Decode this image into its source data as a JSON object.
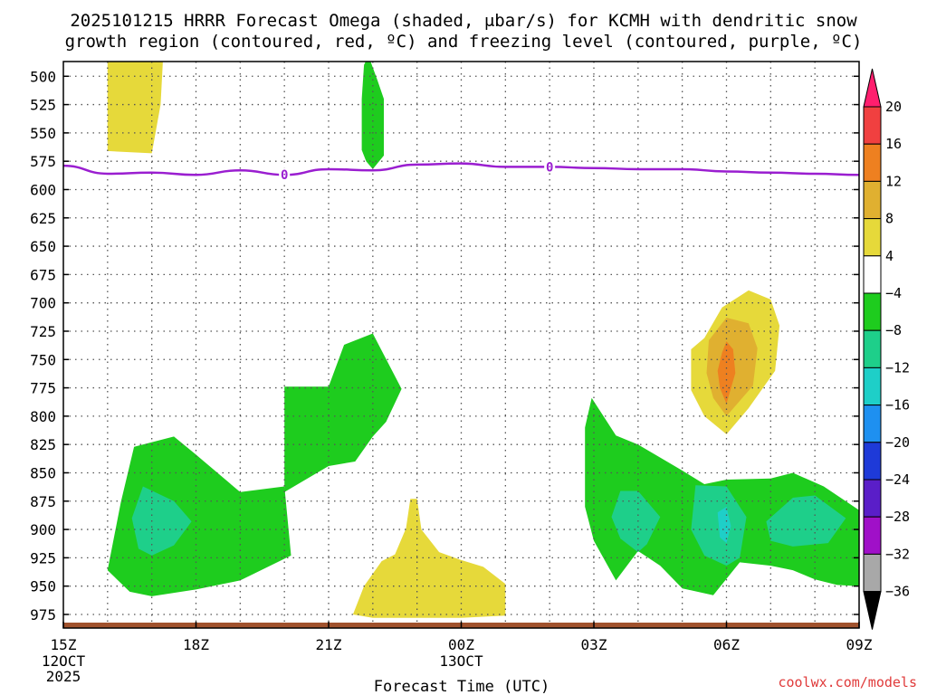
{
  "chart_data": {
    "type": "heatmap",
    "title_line1": "2025101215 HRRR Forecast Omega (shaded, μbar/s) for KCMH with dendritic snow",
    "title_line2": "growth region (contoured, red, ºC) and freezing level (contoured, purple, ºC)",
    "xlabel": "Forecast Time (UTC)",
    "credit": "coolwx.com/models",
    "x_ticks": [
      {
        "hour": 0,
        "label": "15Z"
      },
      {
        "hour": 3,
        "label": "18Z"
      },
      {
        "hour": 6,
        "label": "21Z"
      },
      {
        "hour": 9,
        "label": "00Z"
      },
      {
        "hour": 12,
        "label": "03Z"
      },
      {
        "hour": 15,
        "label": "06Z"
      },
      {
        "hour": 18,
        "label": "09Z"
      }
    ],
    "x_date_labels": [
      {
        "hour": 0,
        "lines": [
          "12OCT",
          "2025"
        ]
      },
      {
        "hour": 9,
        "lines": [
          "13OCT"
        ]
      }
    ],
    "xlim": [
      0,
      18
    ],
    "ylim": [
      987,
      487
    ],
    "y_ticks": [
      500,
      525,
      550,
      575,
      600,
      625,
      650,
      675,
      700,
      725,
      750,
      775,
      800,
      825,
      850,
      875,
      900,
      925,
      950,
      975
    ],
    "colorbar": {
      "labels": [
        "20",
        "16",
        "12",
        "8",
        "4",
        "−4",
        "−8",
        "−12",
        "−16",
        "−20",
        "−24",
        "−28",
        "−32",
        "−36"
      ],
      "colors": [
        "#ff1e6e",
        "#f04040",
        "#ee8020",
        "#e0b030",
        "#e6d93a",
        "#ffffff",
        "#1ecc1e",
        "#1ecf8a",
        "#1ecfc8",
        "#1e90f0",
        "#1e3ad8",
        "#5a1ec8",
        "#a010c8",
        "#a8a8a8",
        "#000000"
      ]
    },
    "freezing_level": {
      "label": "0",
      "color": "#9a1ed0",
      "points": [
        [
          0,
          579
        ],
        [
          1,
          586
        ],
        [
          2,
          585
        ],
        [
          3,
          587
        ],
        [
          4,
          583
        ],
        [
          5,
          587
        ],
        [
          6,
          582
        ],
        [
          7,
          583
        ],
        [
          8,
          578
        ],
        [
          9,
          577
        ],
        [
          10,
          580
        ],
        [
          11,
          580
        ],
        [
          12,
          581
        ],
        [
          13,
          582
        ],
        [
          14,
          582
        ],
        [
          15,
          584
        ],
        [
          16,
          585
        ],
        [
          17,
          586
        ],
        [
          18,
          587
        ]
      ],
      "label_hours": [
        5,
        11
      ]
    },
    "omega_regions": [
      {
        "color": "#e6d93a",
        "value_range": "4 to 8",
        "points": [
          [
            1.0,
            487
          ],
          [
            1.0,
            520
          ],
          [
            1.0,
            566
          ],
          [
            2.0,
            568
          ],
          [
            2.2,
            525
          ],
          [
            2.25,
            487
          ]
        ]
      },
      {
        "color": "#1ecc1e",
        "value_range": "-8 to -4",
        "points": [
          [
            6.85,
            486
          ],
          [
            6.95,
            487
          ],
          [
            7.1,
            503
          ],
          [
            7.25,
            520
          ],
          [
            7.25,
            570
          ],
          [
            7.0,
            582
          ],
          [
            6.85,
            575
          ],
          [
            6.75,
            565
          ],
          [
            6.75,
            520
          ],
          [
            6.8,
            490
          ]
        ]
      },
      {
        "color": "#1ecc1e",
        "value_range": "-8 to -4",
        "points": [
          [
            1.0,
            936
          ],
          [
            1.3,
            876
          ],
          [
            1.6,
            827
          ],
          [
            2.5,
            818
          ],
          [
            3.0,
            834
          ],
          [
            4.0,
            867
          ],
          [
            5.0,
            862
          ],
          [
            5.15,
            923
          ],
          [
            4.0,
            945
          ],
          [
            3.0,
            953
          ],
          [
            2.0,
            959
          ],
          [
            1.5,
            955
          ]
        ]
      },
      {
        "color": "#1ecf8a",
        "value_range": "-12 to -8",
        "points": [
          [
            1.55,
            890
          ],
          [
            1.8,
            862
          ],
          [
            2.5,
            875
          ],
          [
            2.9,
            893
          ],
          [
            2.5,
            914
          ],
          [
            2.0,
            923
          ],
          [
            1.7,
            917
          ]
        ]
      },
      {
        "color": "#1ecc1e",
        "value_range": "-8 to -4",
        "points": [
          [
            5.0,
            774
          ],
          [
            6.0,
            774
          ],
          [
            6.35,
            737
          ],
          [
            7.0,
            727
          ],
          [
            7.65,
            776
          ],
          [
            7.3,
            805
          ],
          [
            7.0,
            818
          ],
          [
            6.6,
            840
          ],
          [
            6.0,
            844
          ],
          [
            5.0,
            867
          ]
        ]
      },
      {
        "color": "#e6d93a",
        "value_range": "4 to 8",
        "points": [
          [
            6.55,
            975
          ],
          [
            6.8,
            950
          ],
          [
            7.2,
            928
          ],
          [
            7.5,
            922
          ],
          [
            7.75,
            899
          ],
          [
            7.85,
            873
          ],
          [
            8.0,
            873
          ],
          [
            8.1,
            900
          ],
          [
            8.5,
            920
          ],
          [
            9.0,
            927
          ],
          [
            9.5,
            933
          ],
          [
            10.0,
            948
          ],
          [
            10.0,
            976
          ],
          [
            9.0,
            978
          ],
          [
            8.0,
            978
          ],
          [
            7.0,
            978
          ]
        ]
      },
      {
        "color": "#1ecc1e",
        "value_range": "-8 to -4",
        "points": [
          [
            11.8,
            854
          ],
          [
            11.8,
            810
          ],
          [
            11.95,
            784
          ],
          [
            12.5,
            817
          ],
          [
            13.0,
            825
          ],
          [
            14.0,
            848
          ],
          [
            14.5,
            860
          ],
          [
            15.0,
            856
          ],
          [
            16.0,
            855
          ],
          [
            16.5,
            850
          ],
          [
            17.2,
            862
          ],
          [
            18.0,
            883
          ],
          [
            18.0,
            950
          ],
          [
            17.5,
            949
          ],
          [
            17.0,
            944
          ],
          [
            16.5,
            936
          ],
          [
            16.0,
            932
          ],
          [
            15.3,
            929
          ],
          [
            14.7,
            958
          ],
          [
            14.0,
            952
          ],
          [
            13.5,
            932
          ],
          [
            13.0,
            919
          ],
          [
            12.5,
            945
          ],
          [
            12.0,
            910
          ],
          [
            11.8,
            880
          ]
        ]
      },
      {
        "color": "#1ecf8a",
        "value_range": "-12 to -8",
        "points": [
          [
            12.6,
            866
          ],
          [
            13.0,
            866
          ],
          [
            13.5,
            889
          ],
          [
            13.2,
            913
          ],
          [
            13.0,
            920
          ],
          [
            12.6,
            908
          ],
          [
            12.4,
            889
          ]
        ]
      },
      {
        "color": "#1ecf8a",
        "value_range": "-12 to -8",
        "points": [
          [
            14.3,
            861
          ],
          [
            15.0,
            862
          ],
          [
            15.45,
            889
          ],
          [
            15.3,
            925
          ],
          [
            15.0,
            932
          ],
          [
            14.5,
            923
          ],
          [
            14.2,
            900
          ]
        ]
      },
      {
        "color": "#1ecfc8",
        "value_range": "-16 to -12",
        "points": [
          [
            14.8,
            885
          ],
          [
            15.0,
            880
          ],
          [
            15.1,
            897
          ],
          [
            15.0,
            912
          ],
          [
            14.85,
            907
          ]
        ]
      },
      {
        "color": "#1ecf8a",
        "value_range": "-12 to -8",
        "points": [
          [
            16.5,
            872
          ],
          [
            17.0,
            870
          ],
          [
            17.7,
            890
          ],
          [
            17.3,
            912
          ],
          [
            16.5,
            915
          ],
          [
            16.0,
            910
          ],
          [
            15.9,
            893
          ]
        ]
      },
      {
        "color": "#e6d93a",
        "value_range": "4 to 8",
        "points": [
          [
            14.5,
            731
          ],
          [
            14.9,
            704
          ],
          [
            15.5,
            689
          ],
          [
            16.0,
            697
          ],
          [
            16.2,
            720
          ],
          [
            16.1,
            760
          ],
          [
            15.5,
            793
          ],
          [
            15.0,
            816
          ],
          [
            14.5,
            800
          ],
          [
            14.2,
            777
          ],
          [
            14.2,
            741
          ]
        ]
      },
      {
        "color": "#e0b030",
        "value_range": "8 to 12",
        "points": [
          [
            14.6,
            733
          ],
          [
            15.0,
            713
          ],
          [
            15.5,
            718
          ],
          [
            15.7,
            740
          ],
          [
            15.6,
            773
          ],
          [
            15.0,
            800
          ],
          [
            14.7,
            784
          ],
          [
            14.55,
            762
          ]
        ]
      },
      {
        "color": "#ee8020",
        "value_range": "12 to 16",
        "points": [
          [
            14.9,
            744
          ],
          [
            15.0,
            734
          ],
          [
            15.15,
            741
          ],
          [
            15.2,
            762
          ],
          [
            15.0,
            789
          ],
          [
            14.85,
            775
          ],
          [
            14.8,
            760
          ]
        ]
      }
    ],
    "ground": {
      "color": "#a0522d"
    }
  }
}
